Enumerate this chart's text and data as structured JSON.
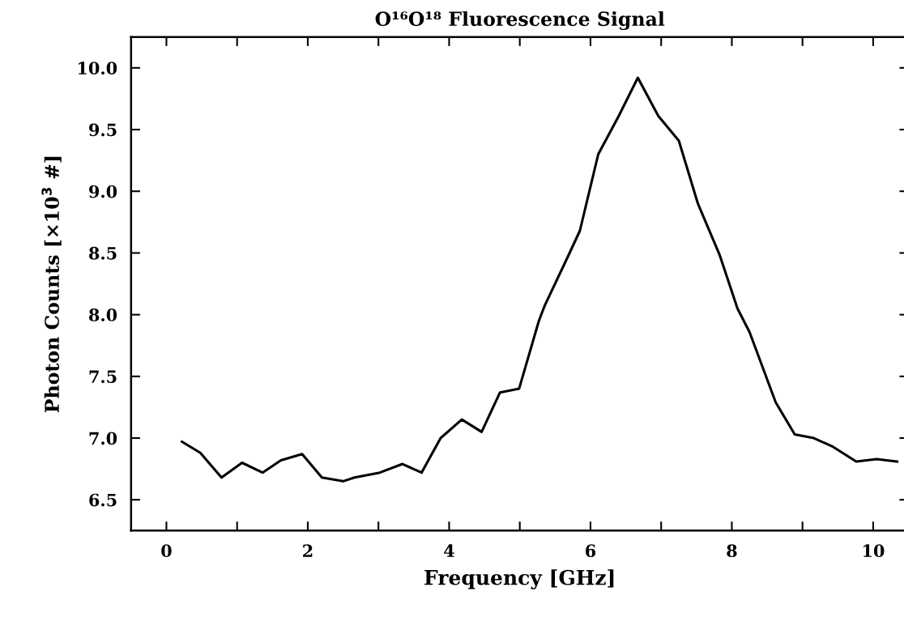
{
  "chart_data": {
    "type": "line",
    "title": "O¹⁶O¹⁸ Fluorescence Signal",
    "xlabel": "Frequency [GHz]",
    "ylabel": "Photon Counts [×10$^{3}$ #]",
    "x": [
      0.22,
      0.48,
      0.78,
      1.07,
      1.36,
      1.62,
      1.92,
      2.2,
      2.5,
      2.66,
      3.02,
      3.34,
      3.61,
      3.88,
      4.18,
      4.46,
      4.72,
      4.99,
      5.27,
      5.35,
      5.68,
      5.85,
      6.11,
      6.4,
      6.67,
      6.96,
      7.25,
      7.52,
      7.83,
      8.08,
      8.25,
      8.62,
      8.89,
      9.16,
      9.43,
      9.76,
      10.05,
      10.34
    ],
    "series": [
      {
        "color": "#000000",
        "values": [
          6.97,
          6.88,
          6.68,
          6.8,
          6.72,
          6.82,
          6.87,
          6.68,
          6.65,
          6.68,
          6.72,
          6.79,
          6.72,
          7.0,
          7.15,
          7.05,
          7.37,
          7.4,
          7.95,
          8.07,
          8.47,
          8.68,
          9.3,
          9.61,
          9.92,
          9.61,
          9.41,
          8.9,
          8.48,
          8.05,
          7.86,
          7.29,
          7.03,
          7.0,
          6.93,
          6.81,
          6.83,
          6.81
        ]
      }
    ],
    "xlim": [
      -0.5,
      10.5
    ],
    "ylim": [
      6.25,
      10.25
    ],
    "xticks": [
      0,
      {
        "value": 1,
        "label": null
      },
      2,
      {
        "value": 3,
        "label": null
      },
      4,
      {
        "value": 5,
        "label": null
      },
      6,
      {
        "value": 7,
        "label": null
      },
      8,
      {
        "value": 9,
        "label": null
      },
      10
    ],
    "yticks": [
      6.5,
      {
        "value": 7,
        "label": "7.0"
      },
      7.5,
      {
        "value": 8,
        "label": "8.0"
      },
      8.5,
      {
        "value": 9,
        "label": "9.0"
      },
      9.5,
      {
        "value": 10,
        "label": "10.0"
      }
    ],
    "grid": false,
    "marker": "none",
    "line_style": "solid"
  }
}
